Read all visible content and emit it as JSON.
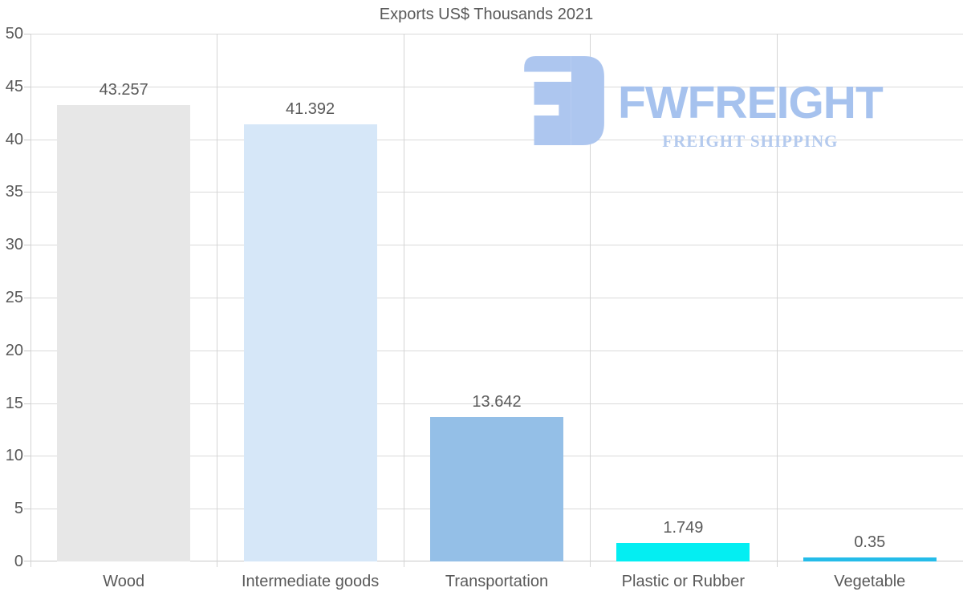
{
  "chart_data": {
    "type": "bar",
    "title": "Exports US$ Thousands 2021",
    "categories": [
      "Wood",
      "Intermediate goods",
      "Transportation",
      "Plastic or Rubber",
      "Vegetable"
    ],
    "values": [
      43.257,
      41.392,
      13.642,
      1.749,
      0.35
    ],
    "value_labels": [
      "43.257",
      "41.392",
      "13.642",
      "1.749",
      "0.35"
    ],
    "bar_colors": [
      "#e7e7e7",
      "#d6e7f8",
      "#94bfe7",
      "#04eef2",
      "#25bce9"
    ],
    "xlabel": "",
    "ylabel": "",
    "ylim": [
      0,
      50
    ],
    "ytick_step": 5,
    "yticks": [
      0,
      5,
      10,
      15,
      20,
      25,
      30,
      35,
      40,
      45,
      50
    ],
    "grid": true,
    "gridline_color": "#dadada",
    "axis_line_color": "#c9c9c9",
    "text_color": "#595959",
    "legend": "none"
  },
  "logo": {
    "name": "FWFREIGHT",
    "subtitle": "FREIGHT SHIPPING",
    "icon": "fwfreight-monogram",
    "icon_color": "#adc6ef",
    "wordmark_color": "#a6c2ee",
    "tagline_color": "#b4caee"
  }
}
